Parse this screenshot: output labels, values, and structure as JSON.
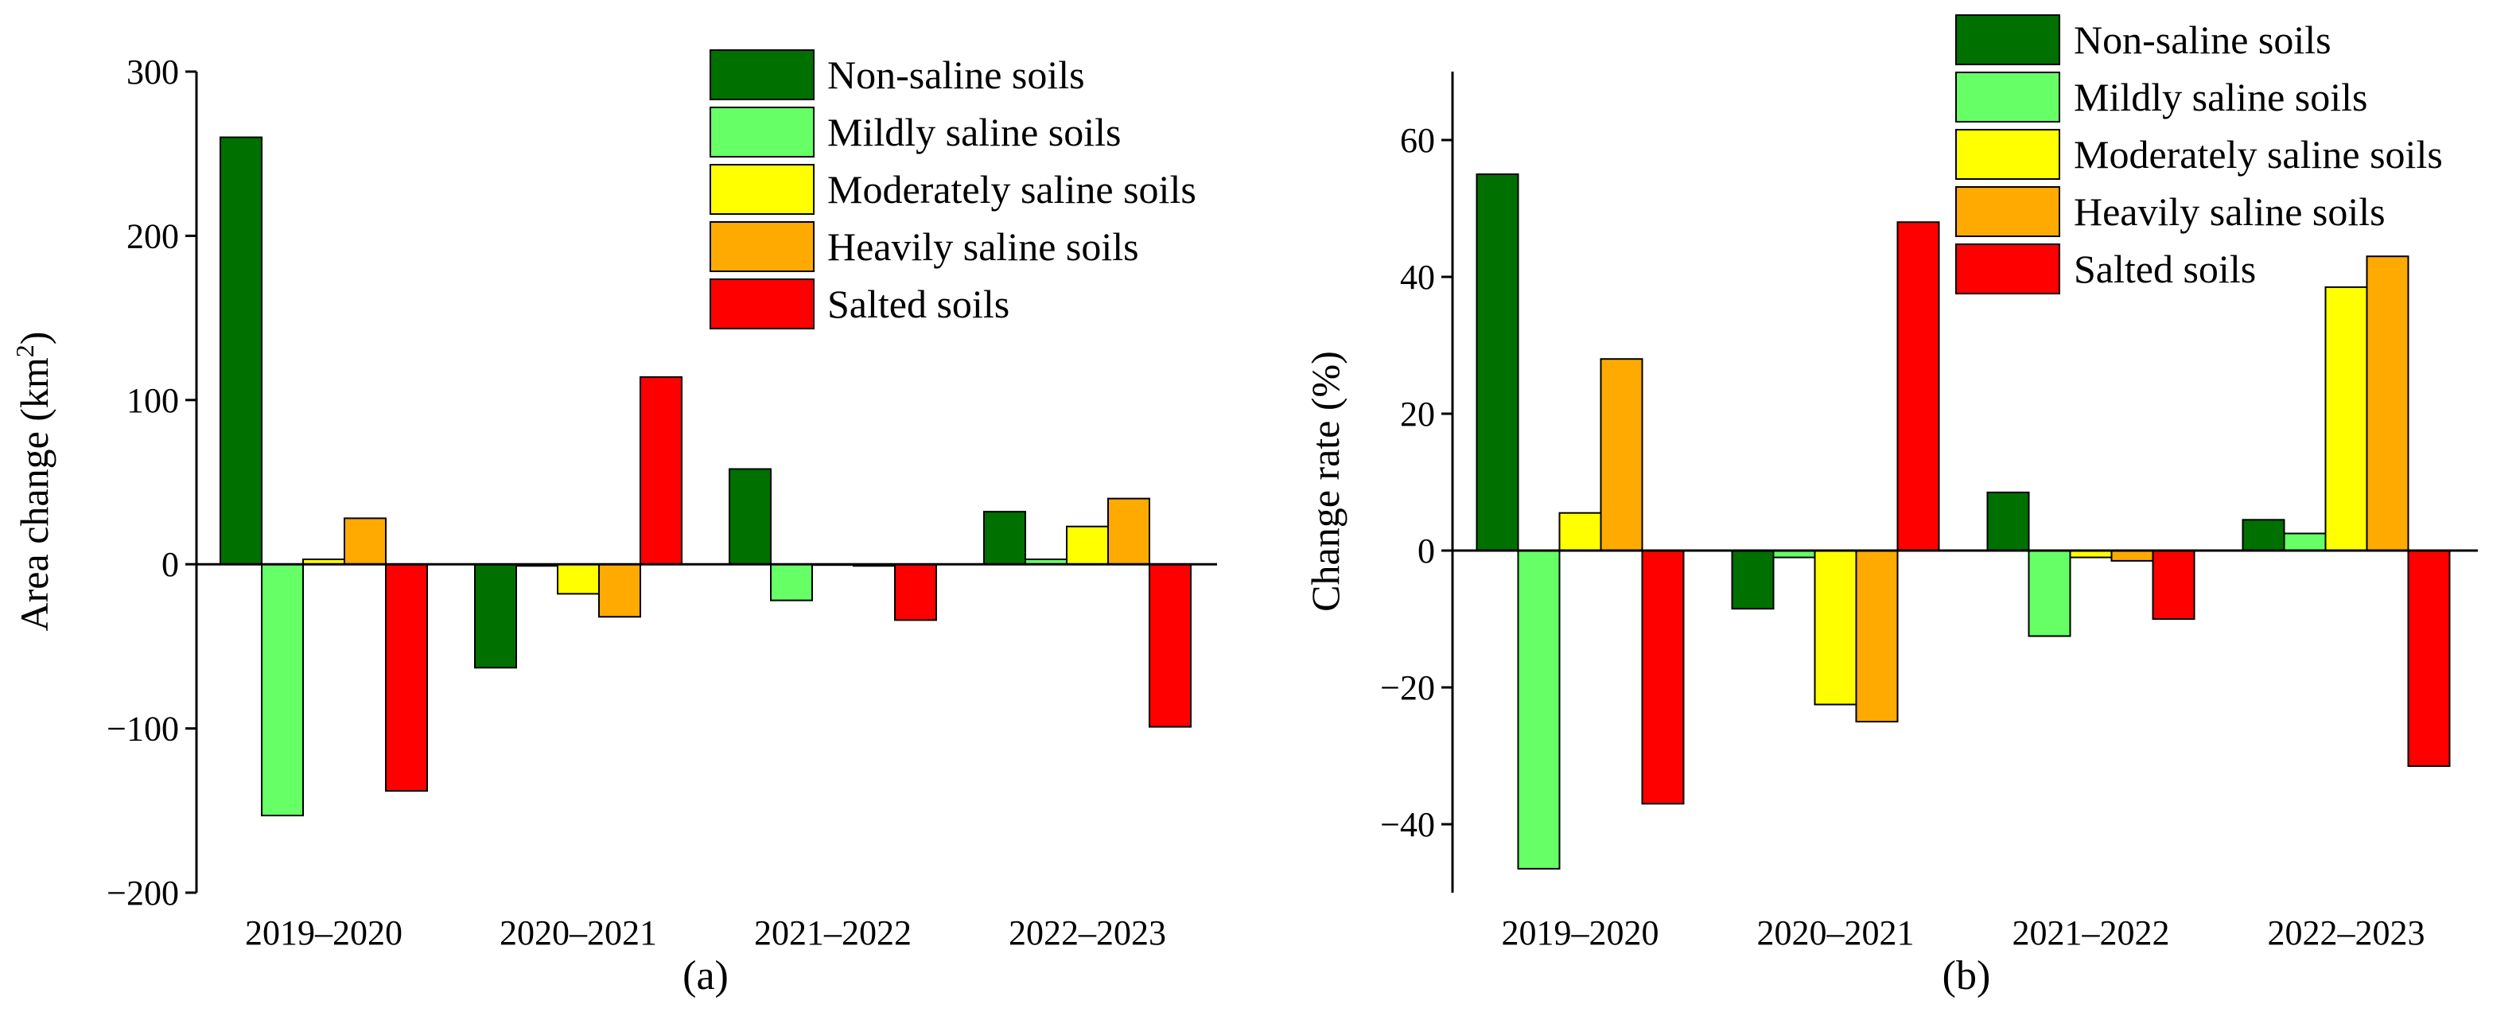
{
  "colors": {
    "non_saline": "#007000",
    "mildly_saline": "#66ff66",
    "moderately_saline": "#ffff00",
    "heavily_saline": "#ffaa00",
    "salted": "#ff0000"
  },
  "chart_data": [
    {
      "type": "bar",
      "panel_label": "(a)",
      "title": "",
      "xlabel": "",
      "ylabel_main": "Area change (km",
      "ylabel_sup": "2",
      "ylabel_tail": ")",
      "ylim": [
        -200,
        300
      ],
      "yticks": [
        -200,
        -100,
        0,
        100,
        200,
        300
      ],
      "ytick_labels": [
        "−200",
        "−100",
        "0",
        "100",
        "200",
        "300"
      ],
      "categories": [
        "2019–2020",
        "2020–2021",
        "2021–2022",
        "2022–2023"
      ],
      "legend_position": "top-right",
      "series": [
        {
          "name": "Non-saline soils",
          "color_key": "non_saline",
          "values": [
            260,
            -63,
            58,
            32
          ]
        },
        {
          "name": "Mildly saline soils",
          "color_key": "mildly_saline",
          "values": [
            -153,
            -1,
            -22,
            3
          ]
        },
        {
          "name": "Moderately saline soils",
          "color_key": "moderately_saline",
          "values": [
            3,
            -18,
            0,
            23
          ]
        },
        {
          "name": "Heavily saline soils",
          "color_key": "heavily_saline",
          "values": [
            28,
            -32,
            -1,
            40
          ]
        },
        {
          "name": "Salted soils",
          "color_key": "salted",
          "values": [
            -138,
            114,
            -34,
            -99
          ]
        }
      ]
    },
    {
      "type": "bar",
      "panel_label": "(b)",
      "title": "",
      "xlabel": "",
      "ylabel_main": "Change rate (%)",
      "ylabel_sup": "",
      "ylabel_tail": "",
      "ylim": [
        -50,
        70
      ],
      "yticks": [
        -40,
        -20,
        0,
        20,
        40,
        60
      ],
      "ytick_labels": [
        "−40",
        "−20",
        "0",
        "20",
        "40",
        "60"
      ],
      "categories": [
        "2019–2020",
        "2020–2021",
        "2021–2022",
        "2022–2023"
      ],
      "legend_position": "top-right",
      "series": [
        {
          "name": "Non-saline soils",
          "color_key": "non_saline",
          "values": [
            55,
            -8.5,
            8.5,
            4.5
          ]
        },
        {
          "name": "Mildly saline soils",
          "color_key": "mildly_saline",
          "values": [
            -46.5,
            -1,
            -12.5,
            2.5
          ]
        },
        {
          "name": "Moderately saline soils",
          "color_key": "moderately_saline",
          "values": [
            5.5,
            -22.5,
            -1,
            38.5
          ]
        },
        {
          "name": "Heavily saline soils",
          "color_key": "heavily_saline",
          "values": [
            28,
            -25,
            -1.5,
            43
          ]
        },
        {
          "name": "Salted soils",
          "color_key": "salted",
          "values": [
            -37,
            48,
            -10,
            -31.5
          ]
        }
      ]
    }
  ]
}
